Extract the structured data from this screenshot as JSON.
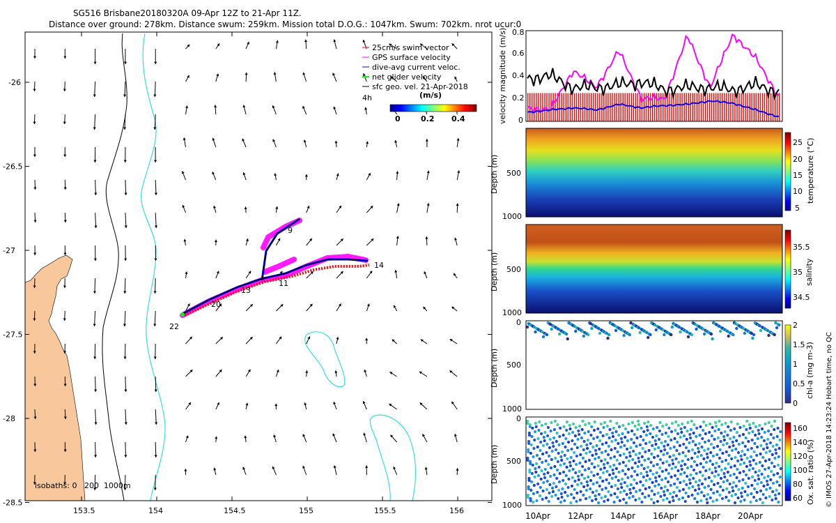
{
  "header": {
    "title": "SG516 Brisbane20180320A 09-Apr 12Z to 21-Apr 11Z.",
    "stats": "Distance over ground: 278km. Distance swum: 259km. Mission total D.O.G.: 1047km. Swum: 702km. nrot ucur:0"
  },
  "map": {
    "x_ticks": [
      "153.5",
      "154",
      "154.5",
      "155",
      "155.5",
      "156"
    ],
    "y_ticks": [
      "-26",
      "-26.5",
      "-27",
      "-27.5",
      "-28",
      "-28.5"
    ],
    "legend": [
      {
        "label": "25cm/s swim vector",
        "color": "#ff0000"
      },
      {
        "label": "GPS surface velocity",
        "color": "#ff00ff"
      },
      {
        "label": "dive-avg current veloc.",
        "color": "#0000ff"
      },
      {
        "label": "net glider velocity",
        "color": "#00ff00"
      },
      {
        "label": "sfc geo. vel. 21-Apr-2018",
        "color": "#000000"
      }
    ],
    "colorbar_title": "(m/s)",
    "colorbar_ticks": [
      "0",
      "0.2",
      "0.4"
    ],
    "arrow_scale_label": "4h",
    "isobath_label": "isobaths: 0   200  1000m",
    "day_labels": [
      "9",
      "11",
      "13",
      "14",
      "20",
      "22"
    ]
  },
  "chart_data": [
    {
      "type": "line",
      "title": "",
      "ylabel": "velocity magnitude (m/s)",
      "ylim": [
        0,
        0.8
      ],
      "y_ticks": [
        "0",
        "0.2",
        "0.4",
        "0.6",
        "0.8"
      ],
      "series": [
        {
          "name": "swim speed",
          "color": "#ff0000",
          "values": [
            0.25,
            0.25,
            0.25,
            0.25,
            0.25,
            0.25,
            0.25,
            0.25,
            0.25,
            0.25,
            0.25,
            0.25
          ]
        },
        {
          "name": "GPS surface velocity",
          "color": "#ff00ff",
          "values": [
            0.12,
            0.1,
            0.45,
            0.3,
            0.62,
            0.2,
            0.2,
            0.75,
            0.3,
            0.77,
            0.55,
            0.22
          ]
        },
        {
          "name": "net glider velocity",
          "color": "#000000",
          "values": [
            0.38,
            0.4,
            0.3,
            0.3,
            0.32,
            0.35,
            0.28,
            0.3,
            0.3,
            0.28,
            0.32,
            0.26
          ]
        },
        {
          "name": "dive-avg current",
          "color": "#0000ff",
          "values": [
            0.08,
            0.1,
            0.12,
            0.1,
            0.15,
            0.12,
            0.14,
            0.15,
            0.18,
            0.16,
            0.1,
            0.04
          ]
        }
      ]
    },
    {
      "type": "heatmap",
      "ylabel": "Depth (m)",
      "y_ticks": [
        "500",
        "1000"
      ],
      "colorbar_label": "temperature (°C)",
      "colorbar_ticks": [
        "25",
        "20",
        "15",
        "10",
        "5"
      ],
      "clim": [
        5,
        27
      ]
    },
    {
      "type": "heatmap",
      "ylabel": "Depth (m)",
      "y_ticks": [
        "500",
        "1000"
      ],
      "colorbar_label": "salinity",
      "colorbar_ticks": [
        "35.5",
        "35",
        "34.5"
      ],
      "clim": [
        34.3,
        35.8
      ]
    },
    {
      "type": "heatmap",
      "ylabel": "Depth (m)",
      "y_ticks": [
        "0",
        "500",
        "1000"
      ],
      "colorbar_label": "chl-a (mg m-3)",
      "colorbar_ticks": [
        "2",
        "1.5",
        "1",
        "0.5",
        "0"
      ],
      "clim": [
        0,
        2
      ]
    },
    {
      "type": "heatmap",
      "ylabel": "Depth (m)",
      "y_ticks": [
        "0",
        "500",
        "1000"
      ],
      "colorbar_label": "Ox. sat. ratio (%)",
      "colorbar_ticks": [
        "160",
        "140",
        "120",
        "100",
        "80",
        "60"
      ],
      "clim": [
        60,
        170
      ]
    }
  ],
  "time_axis": [
    "10Apr",
    "12Apr",
    "14Apr",
    "16Apr",
    "18Apr",
    "20Apr"
  ],
  "footer": "© IMOS 27-Apr-2018 14:23:24 Hobart time, no QC"
}
